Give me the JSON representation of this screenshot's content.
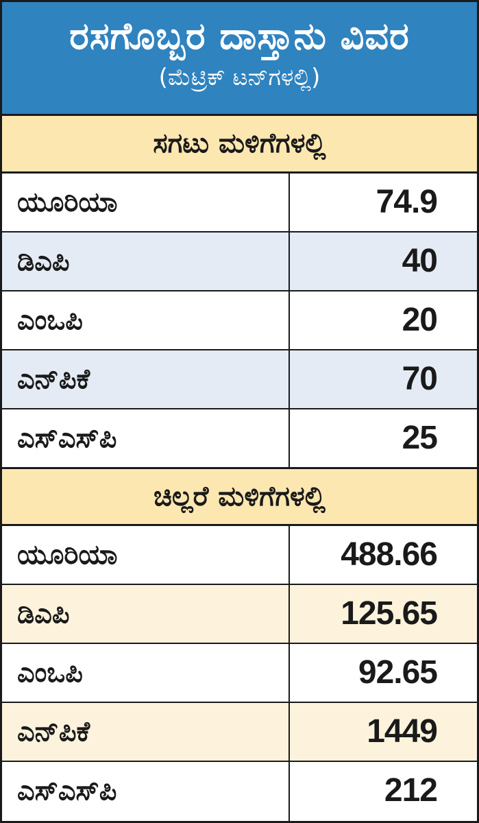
{
  "title": "ರಸಗೊಬ್ಬರ ದಾಸ್ತಾನು ವಿವರ",
  "subtitle": "(ಮೆಟ್ರಿಕ್ ಟನ್‌ಗಳಲ್ಲಿ)",
  "colors": {
    "header_bg": "#2f83bf",
    "section_bg": "#fde7b0",
    "wholesale_alt_row": "#e4ebf5",
    "retail_alt_row": "#fdf3dd"
  },
  "wholesale": {
    "heading": "ಸಗಟು ಮಳಿಗೆಗಳಲ್ಲಿ",
    "rows": [
      {
        "name": "ಯೂರಿಯಾ",
        "value": "74.9"
      },
      {
        "name": "ಡಿಎಪಿ",
        "value": "40"
      },
      {
        "name": "ಎಂಒಪಿ",
        "value": "20"
      },
      {
        "name": "ಎನ್‌ಪಿಕೆ",
        "value": "70"
      },
      {
        "name": "ಎಸ್‌ಎಸ್‌ಪಿ",
        "value": "25"
      }
    ]
  },
  "retail": {
    "heading": "ಚಿಲ್ಲರೆ ಮಳಿಗೆಗಳಲ್ಲಿ",
    "rows": [
      {
        "name": "ಯೂರಿಯಾ",
        "value": "488.66"
      },
      {
        "name": "ಡಿಎಪಿ",
        "value": "125.65"
      },
      {
        "name": "ಎಂಒಪಿ",
        "value": "92.65"
      },
      {
        "name": "ಎನ್‌ಪಿಕೆ",
        "value": "1449"
      },
      {
        "name": "ಎಸ್‌ಎಸ್‌ಪಿ",
        "value": "212"
      }
    ]
  }
}
